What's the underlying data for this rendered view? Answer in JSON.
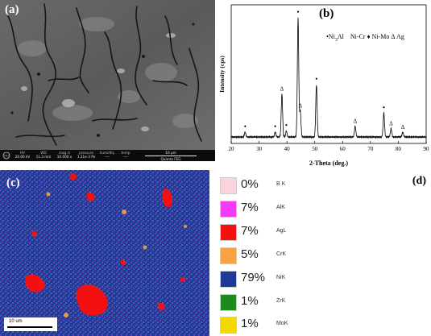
{
  "panel_a": {
    "label": "(a)",
    "info_bar": [
      {
        "header": "HV",
        "value": "20.00 kV"
      },
      {
        "header": "WD",
        "value": "11.3 mm"
      },
      {
        "header": "mag ⊡",
        "value": "10 000 x"
      },
      {
        "header": "pressure",
        "value": "1.21e-3 Pa"
      },
      {
        "header": "humidity",
        "value": "----"
      },
      {
        "header": "temp",
        "value": "----"
      }
    ],
    "scale_text": "10 μm",
    "instrument": "Quanta FEG"
  },
  "panel_b": {
    "label": "(b)",
    "legend_text": [
      "•Ni",
      "3",
      "Al",
      "Ni-Cr ♦ Ni-Mo Δ Ag"
    ],
    "chart_data": {
      "type": "line",
      "xlabel": "2-Theta (deg.)",
      "ylabel": "Intensity (cps)",
      "xlim": [
        20,
        90
      ],
      "xticks": [
        20,
        30,
        40,
        50,
        60,
        70,
        80,
        90
      ],
      "peaks": [
        {
          "x": 25.0,
          "y": 0.04,
          "marker": "•"
        },
        {
          "x": 35.8,
          "y": 0.04,
          "marker": "•"
        },
        {
          "x": 38.2,
          "y": 0.36,
          "marker": "Δ"
        },
        {
          "x": 39.8,
          "y": 0.05,
          "marker": "•"
        },
        {
          "x": 44.0,
          "y": 1.0,
          "marker": "•"
        },
        {
          "x": 44.8,
          "y": 0.22,
          "marker": "Δ"
        },
        {
          "x": 50.6,
          "y": 0.44,
          "marker": "•"
        },
        {
          "x": 64.5,
          "y": 0.09,
          "marker": "Δ"
        },
        {
          "x": 74.8,
          "y": 0.2,
          "marker": "•"
        },
        {
          "x": 77.4,
          "y": 0.07,
          "marker": "Δ"
        },
        {
          "x": 81.6,
          "y": 0.04,
          "marker": "Δ"
        }
      ]
    }
  },
  "panel_c": {
    "label": "(c)",
    "scale_text": "10 um"
  },
  "panel_d": {
    "label": "(d)",
    "items": [
      {
        "pct": "0%",
        "element": "B K",
        "color": "#fad4dc"
      },
      {
        "pct": "7%",
        "element": "AlK",
        "color": "#f23bf2"
      },
      {
        "pct": "7%",
        "element": "AgL",
        "color": "#f21010"
      },
      {
        "pct": "5%",
        "element": "CrK",
        "color": "#f7a244"
      },
      {
        "pct": "79%",
        "element": "NiK",
        "color": "#1c3a9a"
      },
      {
        "pct": "1%",
        "element": "ZrK",
        "color": "#1e8a1e"
      },
      {
        "pct": "1%",
        "element": "MoK",
        "color": "#f5d800"
      }
    ]
  }
}
